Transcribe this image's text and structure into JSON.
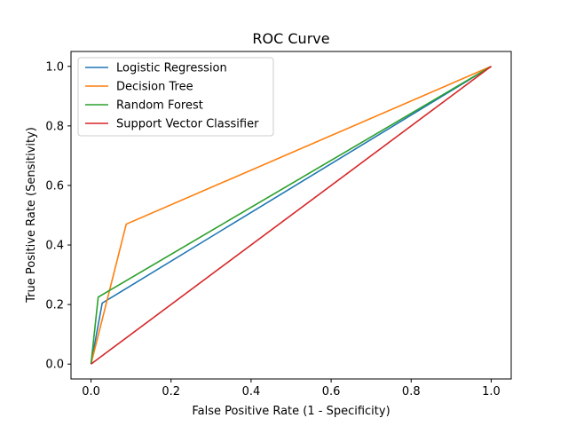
{
  "chart_data": {
    "type": "line",
    "title": "ROC Curve",
    "xlabel": "False Positive Rate (1 - Specificity)",
    "ylabel": "True Positive Rate (Sensitivity)",
    "xlim": [
      -0.05,
      1.05
    ],
    "ylim": [
      -0.05,
      1.05
    ],
    "xticks": [
      "0.0",
      "0.2",
      "0.4",
      "0.6",
      "0.8",
      "1.0"
    ],
    "yticks": [
      "0.0",
      "0.2",
      "0.4",
      "0.6",
      "0.8",
      "1.0"
    ],
    "grid": false,
    "legend": "top-left",
    "series": [
      {
        "name": "Logistic Regression",
        "color": "#1f77b4",
        "x": [
          0.0,
          0.028,
          1.0
        ],
        "y": [
          0.0,
          0.205,
          1.0
        ]
      },
      {
        "name": "Decision Tree",
        "color": "#ff7f0e",
        "x": [
          0.0,
          0.088,
          1.0
        ],
        "y": [
          0.0,
          0.47,
          1.0
        ]
      },
      {
        "name": "Random Forest",
        "color": "#2ca02c",
        "x": [
          0.0,
          0.018,
          1.0
        ],
        "y": [
          0.0,
          0.225,
          1.0
        ]
      },
      {
        "name": "Support Vector Classifier",
        "color": "#d62728",
        "x": [
          0.0,
          1.0
        ],
        "y": [
          0.0,
          1.0
        ]
      }
    ]
  }
}
